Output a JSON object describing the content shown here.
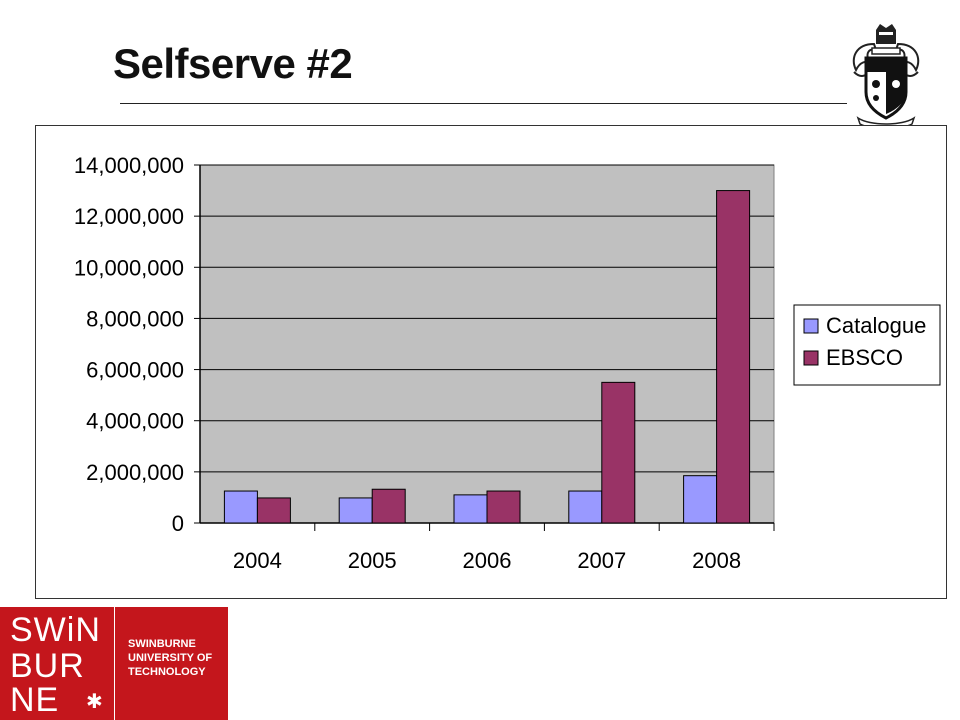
{
  "slide": {
    "title": "Selfserve #2"
  },
  "logo": {
    "mark_lines": [
      "SWiN",
      "BUR",
      "NE"
    ],
    "name_lines": [
      "SWINBURNE",
      "UNIVERSITY OF",
      "TECHNOLOGY"
    ]
  },
  "colors": {
    "catalogue": "#9999ff",
    "ebsco": "#993366",
    "plot_background": "#c0c0c0",
    "brand_red": "#c4161c"
  },
  "chart_data": {
    "type": "bar",
    "title": "",
    "xlabel": "",
    "ylabel": "",
    "categories": [
      "2004",
      "2005",
      "2006",
      "2007",
      "2008"
    ],
    "series": [
      {
        "name": "Catalogue",
        "values": [
          1250000,
          980000,
          1100000,
          1250000,
          1850000
        ]
      },
      {
        "name": "EBSCO",
        "values": [
          980000,
          1320000,
          1250000,
          5500000,
          13000000
        ]
      }
    ],
    "ylim": [
      0,
      14000000
    ],
    "yticks": [
      "0",
      "2,000,000",
      "4,000,000",
      "6,000,000",
      "8,000,000",
      "10,000,000",
      "12,000,000",
      "14,000,000"
    ],
    "grid": true,
    "legend_position": "right"
  }
}
